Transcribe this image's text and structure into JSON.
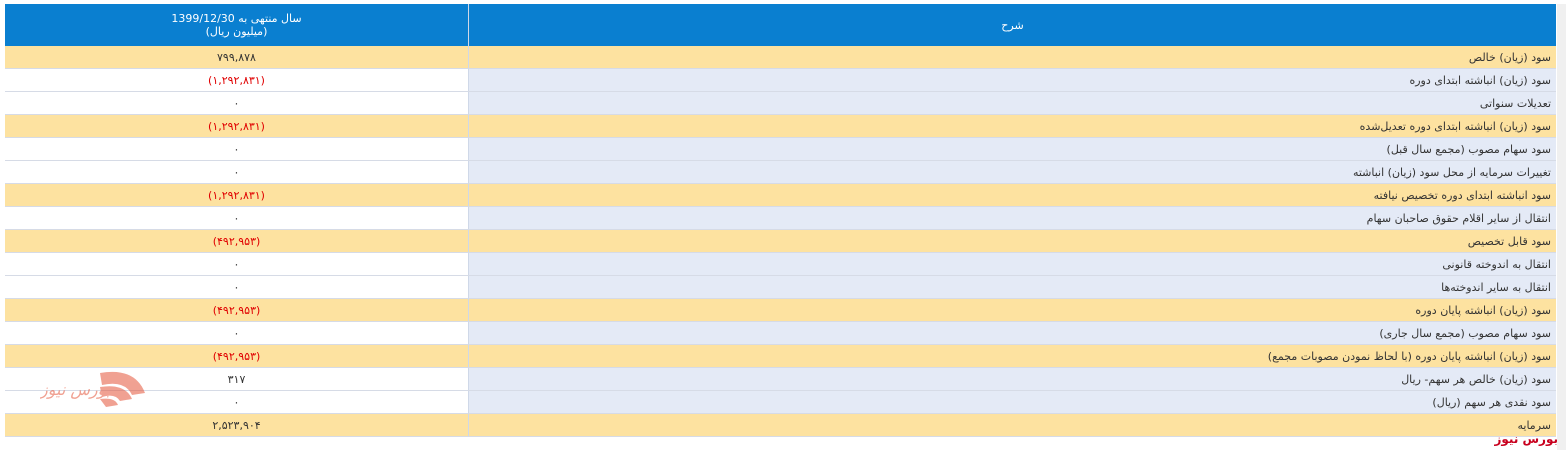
{
  "table": {
    "header": {
      "period": "سال منتهی به 1399/12/30",
      "unit": "(میلیون ریال)",
      "description": "شرح"
    },
    "rows": [
      [
        "سود (زیان) خالص",
        "۷۹۹,۸۷۸"
      ],
      [
        "سود (زیان) انباشته ابتدای دوره",
        "(۱,۲۹۲,۸۳۱)"
      ],
      [
        "تعدیلات سنواتی",
        "۰"
      ],
      [
        "سود (زیان) انباشته ابتدای دوره تعدیل‌شده",
        "(۱,۲۹۲,۸۳۱)"
      ],
      [
        "سود سهام مصوب (مجمع سال قبل)",
        "۰"
      ],
      [
        "تغییرات سرمایه از محل سود (زیان) انباشته",
        "۰"
      ],
      [
        "سود انباشته ابتدای دوره تخصیص نیافته",
        "(۱,۲۹۲,۸۳۱)"
      ],
      [
        "انتقال از سایر اقلام حقوق صاحبان سهام",
        "۰"
      ],
      [
        "سود قابل تخصیص",
        "(۴۹۲,۹۵۳)"
      ],
      [
        "انتقال به اندوخته قانونی",
        "۰"
      ],
      [
        "انتقال به سایر اندوخته‌ها",
        "۰"
      ],
      [
        "سود (زیان) انباشته پایان دوره",
        "(۴۹۲,۹۵۳)"
      ],
      [
        "سود سهام مصوب (مجمع سال جاری)",
        "۰"
      ],
      [
        "سود (زیان) انباشته پایان دوره (با لحاظ نمودن مصوبات مجمع)",
        "(۴۹۲,۹۵۳)"
      ],
      [
        "سود (زیان) خالص هر سهم- ریال",
        "۳۱۷"
      ],
      [
        "سود نقدی هر سهم (ریال)",
        "۰"
      ],
      [
        "سرمایه",
        "۲,۵۲۳,۹۰۴"
      ]
    ]
  },
  "watermark": "بورس نیوز"
}
